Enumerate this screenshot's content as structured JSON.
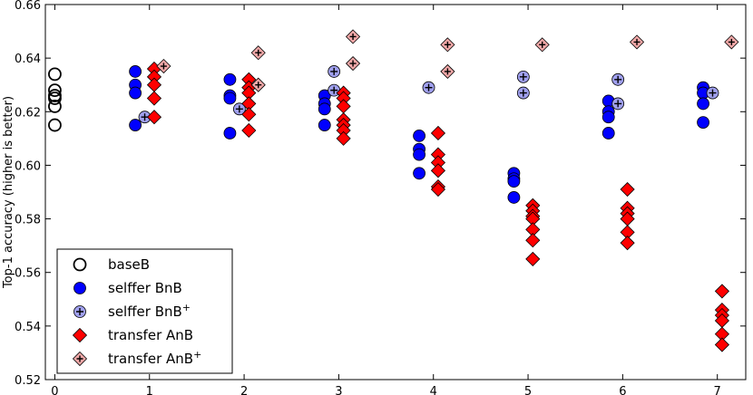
{
  "chart_data": {
    "type": "scatter",
    "title": "",
    "xlabel": "",
    "ylabel": "Top-1 accuracy (higher is better)",
    "xlim": [
      -0.1,
      7.3
    ],
    "ylim": [
      0.52,
      0.66
    ],
    "xticks": [
      "0",
      "1",
      "2",
      "3",
      "4",
      "5",
      "6",
      "7"
    ],
    "yticks": [
      "0.52",
      "0.54",
      "0.56",
      "0.58",
      "0.60",
      "0.62",
      "0.64",
      "0.66"
    ],
    "grid": false,
    "legend_position": "lower-left",
    "series": [
      {
        "name": "baseB",
        "marker": "open-circle",
        "color": "#000000",
        "points": [
          [
            0,
            0.634
          ],
          [
            0,
            0.628
          ],
          [
            0,
            0.626
          ],
          [
            0,
            0.625
          ],
          [
            0,
            0.622
          ],
          [
            0,
            0.615
          ]
        ]
      },
      {
        "name": "selffer BnB",
        "marker": "filled-circle",
        "color": "#0000ff",
        "points": [
          [
            0.85,
            0.635
          ],
          [
            0.85,
            0.63
          ],
          [
            0.85,
            0.627
          ],
          [
            0.85,
            0.615
          ],
          [
            1.85,
            0.632
          ],
          [
            1.85,
            0.626
          ],
          [
            1.85,
            0.625
          ],
          [
            1.85,
            0.612
          ],
          [
            2.85,
            0.626
          ],
          [
            2.85,
            0.623
          ],
          [
            2.85,
            0.621
          ],
          [
            2.85,
            0.615
          ],
          [
            3.85,
            0.611
          ],
          [
            3.85,
            0.606
          ],
          [
            3.85,
            0.604
          ],
          [
            3.85,
            0.597
          ],
          [
            4.85,
            0.597
          ],
          [
            4.85,
            0.595
          ],
          [
            4.85,
            0.594
          ],
          [
            4.85,
            0.588
          ],
          [
            5.85,
            0.624
          ],
          [
            5.85,
            0.62
          ],
          [
            5.85,
            0.618
          ],
          [
            5.85,
            0.612
          ],
          [
            6.85,
            0.629
          ],
          [
            6.85,
            0.627
          ],
          [
            6.85,
            0.623
          ],
          [
            6.85,
            0.616
          ]
        ]
      },
      {
        "name": "selffer BnB+",
        "marker": "plus-circle",
        "color": "#a0a0ee",
        "points": [
          [
            0.95,
            0.618
          ],
          [
            1.95,
            0.621
          ],
          [
            2.95,
            0.635
          ],
          [
            2.95,
            0.628
          ],
          [
            3.95,
            0.629
          ],
          [
            4.95,
            0.633
          ],
          [
            4.95,
            0.627
          ],
          [
            5.95,
            0.632
          ],
          [
            5.95,
            0.623
          ],
          [
            6.95,
            0.627
          ]
        ]
      },
      {
        "name": "transfer AnB",
        "marker": "filled-diamond",
        "color": "#ff0000",
        "points": [
          [
            1.05,
            0.636
          ],
          [
            1.05,
            0.633
          ],
          [
            1.05,
            0.63
          ],
          [
            1.05,
            0.625
          ],
          [
            1.05,
            0.618
          ],
          [
            2.05,
            0.632
          ],
          [
            2.05,
            0.629
          ],
          [
            2.05,
            0.627
          ],
          [
            2.05,
            0.623
          ],
          [
            2.05,
            0.619
          ],
          [
            2.05,
            0.613
          ],
          [
            3.05,
            0.627
          ],
          [
            3.05,
            0.625
          ],
          [
            3.05,
            0.622
          ],
          [
            3.05,
            0.617
          ],
          [
            3.05,
            0.615
          ],
          [
            3.05,
            0.613
          ],
          [
            3.05,
            0.61
          ],
          [
            4.05,
            0.612
          ],
          [
            4.05,
            0.604
          ],
          [
            4.05,
            0.601
          ],
          [
            4.05,
            0.598
          ],
          [
            4.05,
            0.592
          ],
          [
            4.05,
            0.591
          ],
          [
            5.05,
            0.585
          ],
          [
            5.05,
            0.583
          ],
          [
            5.05,
            0.581
          ],
          [
            5.05,
            0.58
          ],
          [
            5.05,
            0.576
          ],
          [
            5.05,
            0.572
          ],
          [
            5.05,
            0.565
          ],
          [
            6.05,
            0.591
          ],
          [
            6.05,
            0.584
          ],
          [
            6.05,
            0.582
          ],
          [
            6.05,
            0.58
          ],
          [
            6.05,
            0.575
          ],
          [
            6.05,
            0.571
          ],
          [
            7.05,
            0.553
          ],
          [
            7.05,
            0.546
          ],
          [
            7.05,
            0.544
          ],
          [
            7.05,
            0.542
          ],
          [
            7.05,
            0.537
          ],
          [
            7.05,
            0.533
          ]
        ]
      },
      {
        "name": "transfer AnB+",
        "marker": "plus-diamond",
        "color": "#f0a8a8",
        "points": [
          [
            1.15,
            0.637
          ],
          [
            2.15,
            0.642
          ],
          [
            2.15,
            0.63
          ],
          [
            3.15,
            0.648
          ],
          [
            3.15,
            0.638
          ],
          [
            4.15,
            0.645
          ],
          [
            4.15,
            0.635
          ],
          [
            5.15,
            0.645
          ],
          [
            6.15,
            0.646
          ],
          [
            7.15,
            0.646
          ]
        ]
      }
    ]
  }
}
